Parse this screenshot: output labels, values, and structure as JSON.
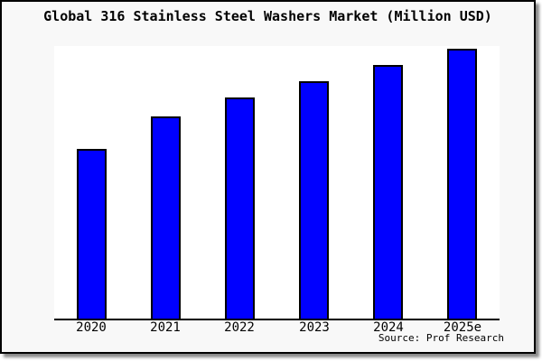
{
  "window": {
    "title": "Global 316 Stainless Steel Washers Market (Million USD)"
  },
  "chart_data": {
    "type": "bar",
    "title": "Global 316 Stainless Steel Washers Market (Million USD)",
    "categories": [
      "2020",
      "2021",
      "2022",
      "2023",
      "2024",
      "2025e"
    ],
    "values": [
      63,
      75,
      82,
      88,
      94,
      100
    ],
    "note": "No y-axis shown in the image; values are relative bar heights indexed to 2025e = 100",
    "xlabel": "",
    "ylabel": "",
    "ylim": [
      0,
      101
    ],
    "grid": false,
    "legend": null,
    "bar_color": "#0000ff",
    "bar_edge_color": "#000000"
  },
  "footer": {
    "source_label": "Source: Prof Research"
  },
  "colors": {
    "page_background": "#f8f8f8",
    "plot_background": "#ffffff",
    "frame_border": "#000000",
    "axis_line": "#000000",
    "text": "#000000"
  }
}
